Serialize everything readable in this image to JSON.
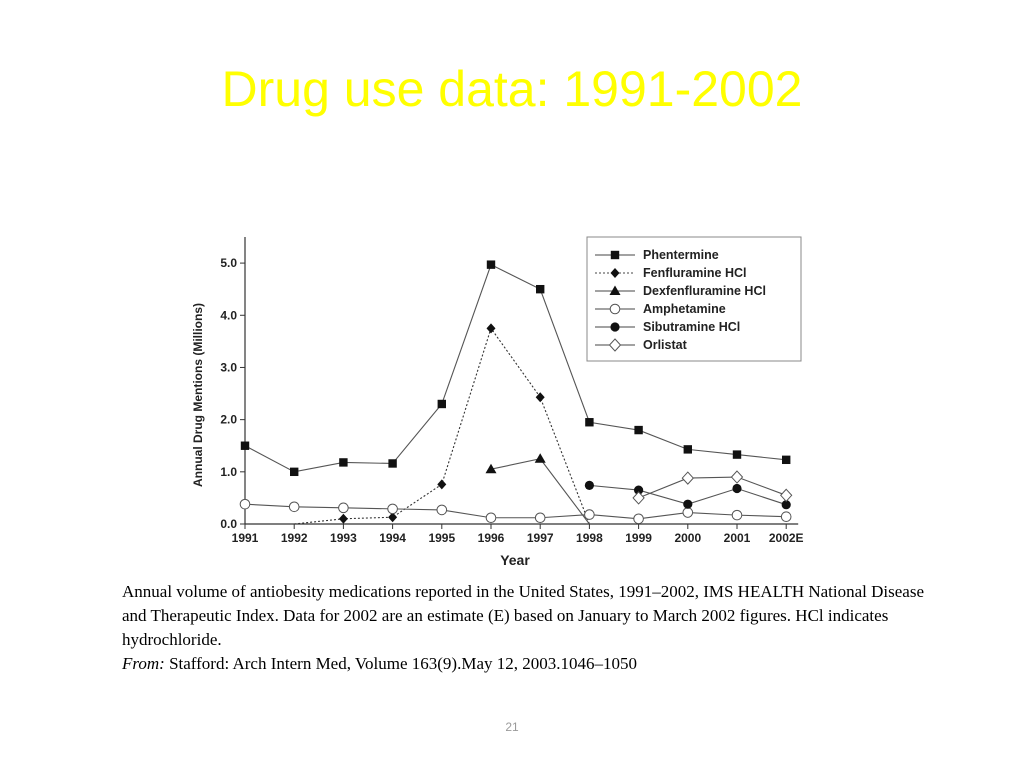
{
  "slide": {
    "title": "Drug use data: 1991-2002",
    "title_color": "#ffff00",
    "page_number": "21"
  },
  "caption": {
    "text": "Annual volume of antiobesity medications reported in the United States, 1991–2002, IMS HEALTH National Disease and Therapeutic Index. Data for 2002 are an estimate (E) based on January to March 2002 figures. HCl indicates hydrochloride.",
    "from_label": "From:",
    "source": "Stafford: Arch Intern Med, Volume 163(9).May 12, 2003.1046–1050"
  },
  "chart_data": {
    "type": "line",
    "title": "",
    "xlabel": "Year",
    "ylabel": "Annual Drug Mentions (Millions)",
    "categories": [
      "1991",
      "1992",
      "1993",
      "1994",
      "1995",
      "1996",
      "1997",
      "1998",
      "1999",
      "2000",
      "2001",
      "2002E"
    ],
    "ylim": [
      0,
      5.5
    ],
    "yticks": [
      "0.0",
      "1.0",
      "2.0",
      "3.0",
      "4.0",
      "5.0"
    ],
    "grid": false,
    "legend_position": "top-right",
    "series": [
      {
        "name": "Phentermine",
        "marker": "square",
        "dashed": false,
        "values": [
          1.5,
          1.0,
          1.18,
          1.16,
          2.3,
          4.97,
          4.5,
          1.95,
          1.8,
          1.43,
          1.33,
          1.23
        ]
      },
      {
        "name": "Fenfluramine HCl",
        "marker": "diamond",
        "dashed": true,
        "values": [
          null,
          0.0,
          0.1,
          0.13,
          0.76,
          3.75,
          2.43,
          0.0,
          null,
          null,
          null,
          null
        ]
      },
      {
        "name": "Dexfenfluramine HCl",
        "marker": "triangle",
        "dashed": false,
        "values": [
          null,
          null,
          null,
          null,
          null,
          1.05,
          1.25,
          0.0,
          null,
          null,
          null,
          null
        ]
      },
      {
        "name": "Amphetamine",
        "marker": "circle-open",
        "dashed": false,
        "values": [
          0.38,
          0.33,
          0.31,
          0.29,
          0.27,
          0.12,
          0.12,
          0.18,
          0.1,
          0.22,
          0.17,
          0.14
        ]
      },
      {
        "name": "Sibutramine HCl",
        "marker": "circle-filled",
        "dashed": false,
        "values": [
          null,
          null,
          null,
          null,
          null,
          null,
          null,
          0.74,
          0.65,
          0.38,
          0.68,
          0.37
        ]
      },
      {
        "name": "Orlistat",
        "marker": "diamond-open",
        "dashed": false,
        "values": [
          null,
          null,
          null,
          null,
          null,
          null,
          null,
          null,
          0.5,
          0.88,
          0.9,
          0.55
        ]
      }
    ]
  }
}
